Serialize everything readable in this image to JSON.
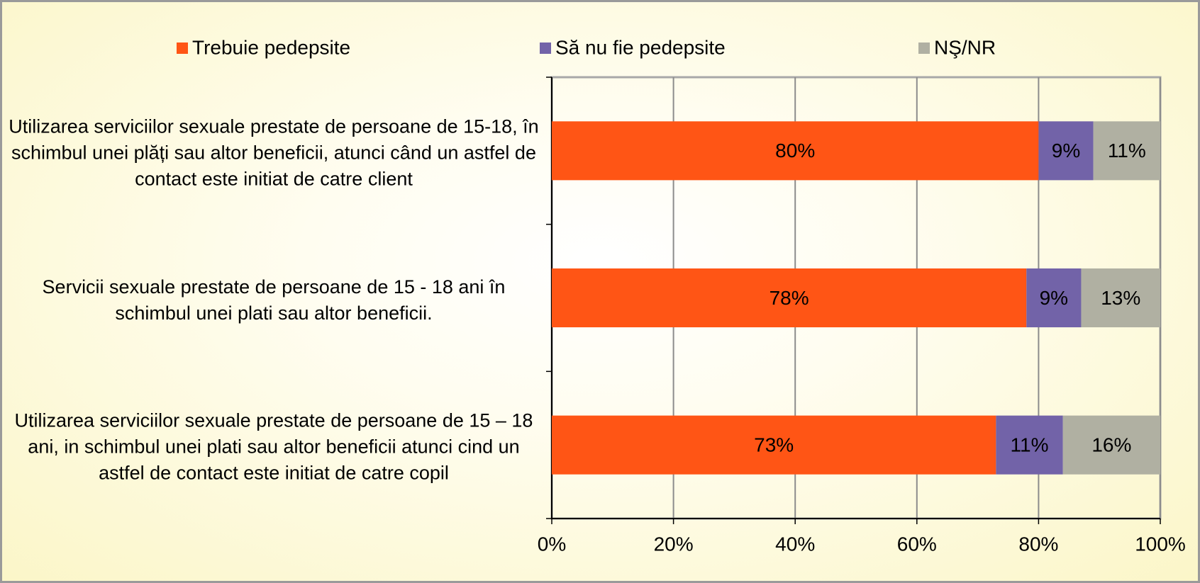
{
  "chart_data": {
    "type": "bar",
    "orientation": "horizontal",
    "stacked": true,
    "categories": [
      "Utilizarea serviciilor sexuale prestate de persoane de 15-18, în schimbul unei plăți sau altor beneficii, atunci când un astfel de contact este initiat de catre client",
      "Servicii sexuale prestate de persoane de 15 - 18 ani în schimbul unei plati sau altor beneficii.",
      "Utilizarea serviciilor sexuale prestate de persoane de 15 – 18 ani, in schimbul unei plati sau altor beneficii atunci cind un astfel de contact este initiat de catre copil"
    ],
    "series": [
      {
        "name": "Trebuie pedepsite",
        "color": "#ff5515",
        "values": [
          80,
          78,
          73
        ],
        "value_labels": [
          "80%",
          "78%",
          "73%"
        ]
      },
      {
        "name": "Să nu fie pedepsite",
        "color": "#7263a8",
        "values": [
          9,
          9,
          11
        ],
        "value_labels": [
          "9%",
          "9%",
          "11%"
        ]
      },
      {
        "name": "NŞ/NR",
        "color": "#b0b0a2",
        "values": [
          11,
          13,
          16
        ],
        "value_labels": [
          "11%",
          "13%",
          "16%"
        ]
      }
    ],
    "xlim": [
      0,
      100
    ],
    "xticks": [
      {
        "value": 0,
        "label": "0%"
      },
      {
        "value": 20,
        "label": "20%"
      },
      {
        "value": 40,
        "label": "40%"
      },
      {
        "value": 60,
        "label": "60%"
      },
      {
        "value": 80,
        "label": "80%"
      },
      {
        "value": 100,
        "label": "100%"
      }
    ],
    "grid": true,
    "legend": "top"
  }
}
